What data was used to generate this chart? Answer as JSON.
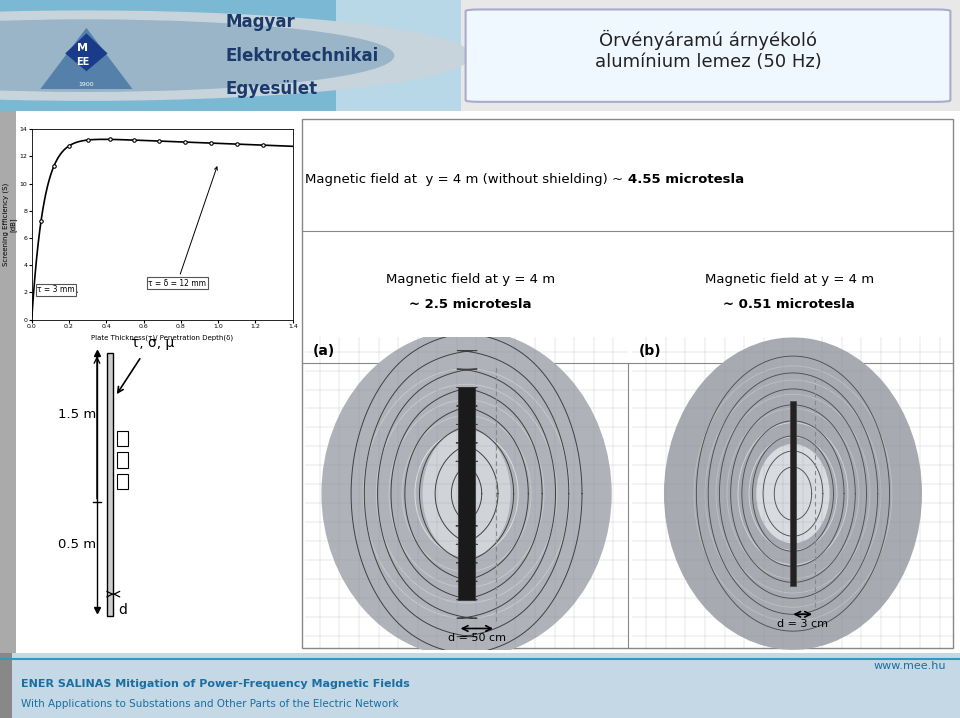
{
  "bg_color": "#e8e8e8",
  "header_bg_left": "#7ab8d4",
  "header_bg_right": "#b8d8e8",
  "header_text_color": "#1a3a6b",
  "org_name_lines": [
    "Magyar",
    "Elektrotechnikai",
    "Egyesület"
  ],
  "title_box_color": "#f0f8ff",
  "title_text": "Örvényáramú árnyékoló\nalumínium lemez (50 Hz)",
  "title_color": "#222222",
  "top_label_normal": "Magnetic field at  y = 4 m (without shielding) ~ ",
  "top_label_bold": "4.55 microtesla",
  "left_sub_normal": "Magnetic field at y = 4 m",
  "left_sub_bold": "~ 2.5 microtesla",
  "right_sub_normal": "Magnetic field at y = 4 m",
  "right_sub_bold": "~ 0.51 microtesla",
  "fig_a_label": "(a)",
  "fig_b_label": "(b)",
  "footer_bg": "#c5d8e5",
  "footer_line1": "ENER SALINAS Mitigation of Power-Frequency Magnetic Fields",
  "footer_line2": "With Applications to Substations and Other Parts of the Electric Network",
  "footer_color": "#1a6fa0",
  "footer_url": "www.mee.hu",
  "graph_xlabel": "Plate Thickness(τ)/ Penetration Depth(δ)",
  "graph_ylabel": "Screening Efficiency (S)\n[dB]",
  "graph_ylim": [
    0,
    14
  ],
  "graph_xlim": [
    0,
    1.4
  ],
  "graph_ann1": "τ = 3 mm",
  "graph_ann2": "τ = δ = 12 mm",
  "dim_label": "τ, σ, μ",
  "dim_1_5": "1.5 m",
  "dim_0_5": "0.5 m",
  "dim_d": "d",
  "left_img_d": "d = 50 cm",
  "right_img_d": "d = 3 cm",
  "img_bg_outer": "#b0b8c0",
  "img_bg_inner": "#c8d0d8",
  "panel_bg": "#ffffff"
}
